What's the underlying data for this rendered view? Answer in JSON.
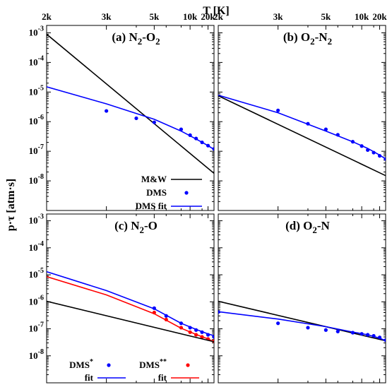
{
  "figure": {
    "top_axis_title": "T [K]",
    "left_axis_title": "p·τ [atm·s]",
    "top_ticks": [
      "20k",
      "10k",
      "5k",
      "3k",
      "2k"
    ],
    "y_ticks": [
      "10-8",
      "10-7",
      "10-6",
      "10-5",
      "10-4",
      "10-3"
    ]
  },
  "chart_data": [
    {
      "type": "line",
      "title": "(a) N2-O2",
      "title_parts": [
        {
          "t": "(a) N"
        },
        {
          "t": "2",
          "sub": true
        },
        {
          "t": "-O"
        },
        {
          "t": "2",
          "sub": true
        }
      ],
      "xlabel": "T [K]",
      "ylabel": "p·τ [atm·s]",
      "x_scale": "reciprocal",
      "y_scale": "log",
      "ylim": [
        1e-09,
        0.001
      ],
      "legend": {
        "placement": "bottom-right",
        "entries": [
          {
            "label": "M&W",
            "series": 0
          },
          {
            "label": "DMS",
            "series": 1
          },
          {
            "label": "DMS fit",
            "series": 2
          }
        ]
      },
      "series": [
        {
          "name": "M&W",
          "style": "line",
          "color": "#000000",
          "x": [
            30000,
            2000
          ],
          "y": [
            1.8e-08,
            0.0009
          ]
        },
        {
          "name": "DMS",
          "style": "points",
          "color": "#0000ff",
          "x": [
            30000,
            20000,
            15000,
            12000,
            10000,
            8000,
            5000,
            4000,
            3000
          ],
          "y": [
            1.2e-07,
            1.55e-07,
            2e-07,
            2.7e-07,
            3.5e-07,
            5.5e-07,
            9.5e-07,
            1.3e-06,
            2.3e-06
          ]
        },
        {
          "name": "DMS fit",
          "style": "line",
          "color": "#0000ff",
          "x": [
            30000,
            20000,
            12000,
            8000,
            5000,
            3000,
            2000
          ],
          "y": [
            1.15e-07,
            1.55e-07,
            2.6e-07,
            4.8e-07,
            1.2e-06,
            4e-06,
            1.5e-05
          ]
        }
      ]
    },
    {
      "type": "line",
      "title": "(b) O2-N2",
      "title_parts": [
        {
          "t": "(b) O"
        },
        {
          "t": "2",
          "sub": true
        },
        {
          "t": "-N"
        },
        {
          "t": "2",
          "sub": true
        }
      ],
      "x_scale": "reciprocal",
      "y_scale": "log",
      "ylim": [
        1e-09,
        0.001
      ],
      "series": [
        {
          "name": "M&W",
          "style": "line",
          "color": "#000000",
          "x": [
            30000,
            2000
          ],
          "y": [
            1.5e-08,
            7.5e-06
          ]
        },
        {
          "name": "DMS",
          "style": "points",
          "color": "#0000ff",
          "x": [
            30000,
            20000,
            15000,
            12000,
            10000,
            8000,
            6000,
            5000,
            4000,
            3000
          ],
          "y": [
            5.5e-08,
            7e-08,
            9e-08,
            1.1e-07,
            1.5e-07,
            2.1e-07,
            3.6e-07,
            5.5e-07,
            8.5e-07,
            2.4e-06
          ]
        },
        {
          "name": "DMS fit",
          "style": "line",
          "color": "#0000ff",
          "x": [
            30000,
            20000,
            12000,
            8000,
            5000,
            3000,
            2000
          ],
          "y": [
            5.5e-08,
            7.4e-08,
            1.25e-07,
            2.1e-07,
            4.8e-07,
            2e-06,
            7.8e-06
          ]
        }
      ]
    },
    {
      "type": "line",
      "title": "(c) N2-O",
      "title_parts": [
        {
          "t": "(c) N"
        },
        {
          "t": "2",
          "sub": true
        },
        {
          "t": "-O"
        }
      ],
      "x_scale": "reciprocal",
      "y_scale": "log",
      "ylim": [
        1e-09,
        0.001
      ],
      "legend": {
        "placement": "bottom-left",
        "entries": [
          {
            "label": "DMS",
            "sup": "*",
            "series": 0
          },
          {
            "label": "DMS",
            "sup": "**",
            "series": 1
          },
          {
            "label": "fit",
            "series": 2
          },
          {
            "label": "fit",
            "series": 3
          }
        ]
      },
      "series": [
        {
          "name": "DMS*",
          "style": "points",
          "color": "#0000ff",
          "x": [
            30000,
            20000,
            15000,
            12000,
            10000,
            8000,
            6000,
            5000
          ],
          "y": [
            5e-08,
            6e-08,
            7.5e-08,
            9e-08,
            1.1e-07,
            1.6e-07,
            3e-07,
            5.8e-07
          ]
        },
        {
          "name": "DMS**",
          "style": "points",
          "color": "#ff0000",
          "x": [
            30000,
            20000,
            15000,
            12000,
            10000,
            8000,
            6000,
            5000
          ],
          "y": [
            3.5e-08,
            4.2e-08,
            5e-08,
            6e-08,
            7.5e-08,
            1.1e-07,
            2.2e-07,
            4e-07
          ]
        },
        {
          "name": "fit",
          "style": "line",
          "color": "#0000ff",
          "x": [
            30000,
            20000,
            12000,
            8000,
            5000,
            3000,
            2000
          ],
          "y": [
            5.5e-08,
            6.5e-08,
            9.5e-08,
            1.6e-07,
            5.5e-07,
            2.6e-06,
            1.3e-05
          ]
        },
        {
          "name": "fit",
          "style": "line",
          "color": "#ff0000",
          "x": [
            30000,
            20000,
            12000,
            8000,
            5000,
            3000,
            2000
          ],
          "y": [
            3.3e-08,
            4.2e-08,
            6.2e-08,
            1.05e-07,
            3.6e-07,
            1.8e-06,
            8.5e-06
          ]
        },
        {
          "name": "M&W",
          "style": "line",
          "color": "#000000",
          "x": [
            30000,
            2000
          ],
          "y": [
            3.3e-08,
            1.05e-06
          ]
        }
      ]
    },
    {
      "type": "line",
      "title": "(d) O2-N",
      "title_parts": [
        {
          "t": "(d) O"
        },
        {
          "t": "2",
          "sub": true
        },
        {
          "t": "-N"
        }
      ],
      "x_scale": "reciprocal",
      "y_scale": "log",
      "ylim": [
        1e-09,
        0.001
      ],
      "series": [
        {
          "name": "M&W",
          "style": "line",
          "color": "#000000",
          "x": [
            30000,
            2000
          ],
          "y": [
            3.6e-08,
            1.05e-06
          ]
        },
        {
          "name": "DMS",
          "style": "points",
          "color": "#0000ff",
          "x": [
            30000,
            20000,
            15000,
            12000,
            10000,
            8000,
            6000,
            5000,
            4000,
            3000,
            2000
          ],
          "y": [
            3.8e-08,
            4.8e-08,
            5.5e-08,
            6e-08,
            6.5e-08,
            7.2e-08,
            8e-08,
            9e-08,
            1.1e-07,
            1.6e-07,
            4.2e-07
          ]
        },
        {
          "name": "DMS fit",
          "style": "line",
          "color": "#0000ff",
          "x": [
            30000,
            20000,
            12000,
            8000,
            5000,
            3000,
            2000
          ],
          "y": [
            3.6e-08,
            4.5e-08,
            6e-08,
            7.6e-08,
            1.2e-07,
            2.3e-07,
            4.3e-07
          ]
        }
      ]
    }
  ]
}
